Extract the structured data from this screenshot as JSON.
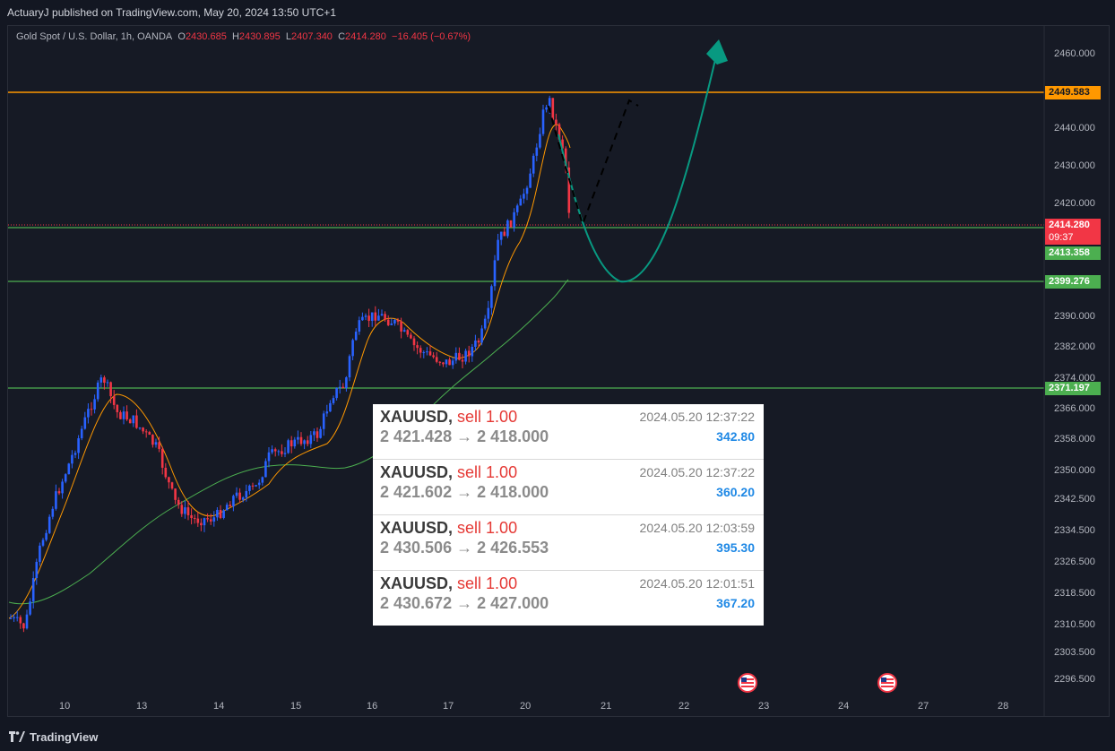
{
  "header": {
    "publisher_line": "ActuaryJ published on TradingView.com, May 20, 2024 13:50 UTC+1"
  },
  "symbol": {
    "name": "Gold Spot / U.S. Dollar, 1h, OANDA",
    "o_label": "O",
    "o": "2430.685",
    "h_label": "H",
    "h": "2430.895",
    "l_label": "L",
    "l": "2407.340",
    "c_label": "C",
    "c": "2414.280",
    "change": "−16.405 (−0.67%)"
  },
  "price_axis": [
    "2460.000",
    "2440.000",
    "2430.000",
    "2420.000",
    "2390.000",
    "2382.000",
    "2374.000",
    "2366.000",
    "2358.000",
    "2350.000",
    "2342.500",
    "2334.500",
    "2326.500",
    "2318.500",
    "2310.500",
    "2303.500",
    "2296.500"
  ],
  "price_tags": {
    "resistance": "2449.583",
    "last_price": "2414.280",
    "countdown": "09:37",
    "support_1": "2413.358",
    "support_2": "2399.276",
    "support_3": "2371.197"
  },
  "time_axis": [
    "10",
    "13",
    "14",
    "15",
    "16",
    "17",
    "20",
    "21",
    "22",
    "23",
    "24",
    "27",
    "28"
  ],
  "trades": [
    {
      "symbol": "XAUUSD,",
      "side": "sell 1.00",
      "prices": "2 421.428 → 2 418.000",
      "time": "2024.05.20 12:37:22",
      "profit": "342.80"
    },
    {
      "symbol": "XAUUSD,",
      "side": "sell 1.00",
      "prices": "2 421.602 → 2 418.000",
      "time": "2024.05.20 12:37:22",
      "profit": "360.20"
    },
    {
      "symbol": "XAUUSD,",
      "side": "sell 1.00",
      "prices": "2 430.506 → 2 426.553",
      "time": "2024.05.20 12:03:59",
      "profit": "395.30"
    },
    {
      "symbol": "XAUUSD,",
      "side": "sell 1.00",
      "prices": "2 430.672 → 2 427.000",
      "time": "2024.05.20 12:01:51",
      "profit": "367.20"
    }
  ],
  "footer": {
    "brand": "TradingView"
  },
  "colors": {
    "background": "#131722",
    "up": "#2962ff",
    "down": "#f23645",
    "resistance": "#ff9800",
    "support": "#4caf50",
    "projection": "#089981",
    "ema_fast": "#ff9800",
    "ema_slow": "#4caf50"
  },
  "icons": [
    "us-flag-icon",
    "us-flag-icon",
    "tradingview-logo-icon"
  ]
}
